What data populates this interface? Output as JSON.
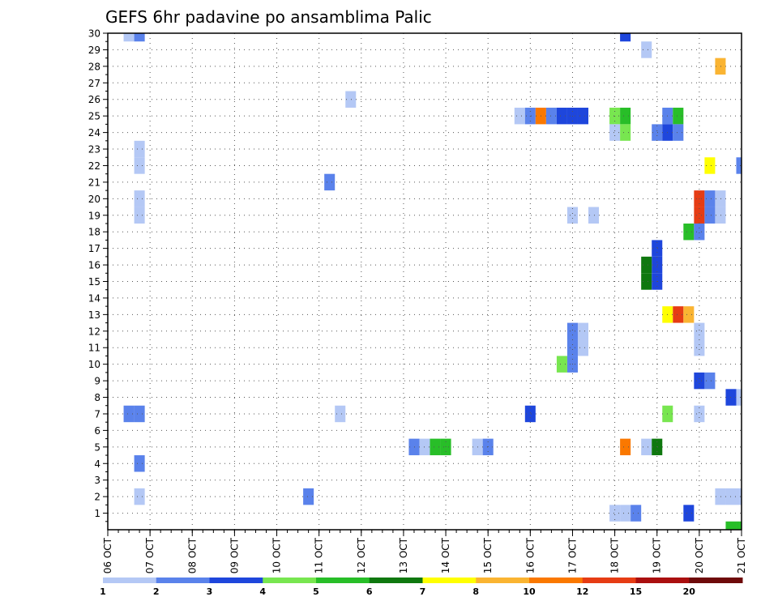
{
  "chart_data": {
    "type": "heatmap",
    "title": "GEFS 6hr padavine po ansamblima Palic",
    "x_ticks": [
      "06 OCT",
      "07 OCT",
      "08 OCT",
      "09 OCT",
      "10 OCT",
      "11 OCT",
      "12 OCT",
      "13 OCT",
      "14 OCT",
      "15 OCT",
      "16 OCT",
      "17 OCT",
      "18 OCT",
      "19 OCT",
      "20 OCT",
      "21 OCT"
    ],
    "y_ticks": [
      "1",
      "2",
      "3",
      "4",
      "5",
      "6",
      "7",
      "8",
      "9",
      "10",
      "11",
      "12",
      "13",
      "14",
      "15",
      "16",
      "17",
      "18",
      "19",
      "20",
      "21",
      "22",
      "23",
      "24",
      "25",
      "26",
      "27",
      "28",
      "29",
      "30"
    ],
    "x_range": [
      0,
      15
    ],
    "y_range": [
      0,
      30
    ],
    "grid": true,
    "colorbar": {
      "labels": [
        "1",
        "2",
        "3",
        "4",
        "5",
        "6",
        "7",
        "8",
        "10",
        "12",
        "15",
        "20"
      ],
      "colors": [
        "#b4c8f5",
        "#5a82eb",
        "#1e46dc",
        "#78e650",
        "#28be28",
        "#0f780f",
        "#ffff00",
        "#fab432",
        "#fa7800",
        "#e63c14",
        "#aa0f0f",
        "#6e0a0a"
      ]
    },
    "cells": [
      {
        "x": 0.5,
        "y": 30,
        "c": 0
      },
      {
        "x": 0.75,
        "y": 30,
        "c": 1
      },
      {
        "x": 12.25,
        "y": 30,
        "c": 2
      },
      {
        "x": 12.75,
        "y": 29,
        "c": 0
      },
      {
        "x": 14.5,
        "y": 28,
        "c": 7
      },
      {
        "x": 5.75,
        "y": 26,
        "c": 0
      },
      {
        "x": 9.75,
        "y": 25,
        "c": 0
      },
      {
        "x": 10.0,
        "y": 25,
        "c": 1
      },
      {
        "x": 10.25,
        "y": 25,
        "c": 8
      },
      {
        "x": 10.5,
        "y": 25,
        "c": 1
      },
      {
        "x": 10.75,
        "y": 25,
        "c": 2
      },
      {
        "x": 11.0,
        "y": 25,
        "c": 2
      },
      {
        "x": 11.25,
        "y": 25,
        "c": 2
      },
      {
        "x": 12.0,
        "y": 25,
        "c": 3
      },
      {
        "x": 12.25,
        "y": 25,
        "c": 4
      },
      {
        "x": 13.25,
        "y": 25,
        "c": 1
      },
      {
        "x": 13.5,
        "y": 25,
        "c": 4
      },
      {
        "x": 12.0,
        "y": 24,
        "c": 0
      },
      {
        "x": 12.25,
        "y": 24,
        "c": 3
      },
      {
        "x": 13.0,
        "y": 24,
        "c": 1
      },
      {
        "x": 13.25,
        "y": 24,
        "c": 2
      },
      {
        "x": 13.5,
        "y": 24,
        "c": 1
      },
      {
        "x": 0.75,
        "y": 23,
        "c": 0
      },
      {
        "x": 0.75,
        "y": 22,
        "c": 0
      },
      {
        "x": 14.25,
        "y": 22,
        "c": 6
      },
      {
        "x": 15.0,
        "y": 22,
        "c": 1
      },
      {
        "x": 5.25,
        "y": 21,
        "c": 1
      },
      {
        "x": 0.75,
        "y": 20,
        "c": 0
      },
      {
        "x": 14.0,
        "y": 20,
        "c": 9
      },
      {
        "x": 14.25,
        "y": 20,
        "c": 1
      },
      {
        "x": 14.5,
        "y": 20,
        "c": 0
      },
      {
        "x": 0.75,
        "y": 19,
        "c": 0
      },
      {
        "x": 11.0,
        "y": 19,
        "c": 0
      },
      {
        "x": 11.5,
        "y": 19,
        "c": 0
      },
      {
        "x": 14.0,
        "y": 19,
        "c": 9
      },
      {
        "x": 14.25,
        "y": 19,
        "c": 1
      },
      {
        "x": 14.5,
        "y": 19,
        "c": 0
      },
      {
        "x": 13.75,
        "y": 18,
        "c": 4
      },
      {
        "x": 14.0,
        "y": 18,
        "c": 1
      },
      {
        "x": 13.0,
        "y": 17,
        "c": 2
      },
      {
        "x": 13.0,
        "y": 16,
        "c": 2
      },
      {
        "x": 12.75,
        "y": 16,
        "c": 5
      },
      {
        "x": 12.75,
        "y": 15,
        "c": 5
      },
      {
        "x": 13.0,
        "y": 15,
        "c": 2
      },
      {
        "x": 13.25,
        "y": 13,
        "c": 6
      },
      {
        "x": 13.5,
        "y": 13,
        "c": 9
      },
      {
        "x": 13.75,
        "y": 13,
        "c": 7
      },
      {
        "x": 11.0,
        "y": 12,
        "c": 1
      },
      {
        "x": 11.25,
        "y": 12,
        "c": 0
      },
      {
        "x": 14.0,
        "y": 12,
        "c": 0
      },
      {
        "x": 11.0,
        "y": 11,
        "c": 1
      },
      {
        "x": 11.25,
        "y": 11,
        "c": 0
      },
      {
        "x": 14.0,
        "y": 11,
        "c": 0
      },
      {
        "x": 10.75,
        "y": 10,
        "c": 3
      },
      {
        "x": 11.0,
        "y": 10,
        "c": 1
      },
      {
        "x": 14.0,
        "y": 9,
        "c": 2
      },
      {
        "x": 14.25,
        "y": 9,
        "c": 1
      },
      {
        "x": 14.75,
        "y": 8,
        "c": 2
      },
      {
        "x": 15.0,
        "y": 8,
        "c": 0
      },
      {
        "x": 0.5,
        "y": 7,
        "c": 1
      },
      {
        "x": 0.75,
        "y": 7,
        "c": 1
      },
      {
        "x": 5.5,
        "y": 7,
        "c": 0
      },
      {
        "x": 10.0,
        "y": 7,
        "c": 2
      },
      {
        "x": 13.25,
        "y": 7,
        "c": 3
      },
      {
        "x": 14.0,
        "y": 7,
        "c": 0
      },
      {
        "x": 7.25,
        "y": 5,
        "c": 1
      },
      {
        "x": 7.5,
        "y": 5,
        "c": 0
      },
      {
        "x": 7.75,
        "y": 5,
        "c": 4
      },
      {
        "x": 8.0,
        "y": 5,
        "c": 4
      },
      {
        "x": 8.75,
        "y": 5,
        "c": 0
      },
      {
        "x": 9.0,
        "y": 5,
        "c": 1
      },
      {
        "x": 12.25,
        "y": 5,
        "c": 8
      },
      {
        "x": 12.75,
        "y": 5,
        "c": 0
      },
      {
        "x": 13.0,
        "y": 5,
        "c": 5
      },
      {
        "x": 0.75,
        "y": 4,
        "c": 1
      },
      {
        "x": 0.75,
        "y": 2,
        "c": 0
      },
      {
        "x": 4.75,
        "y": 2,
        "c": 1
      },
      {
        "x": 14.5,
        "y": 2,
        "c": 0
      },
      {
        "x": 14.75,
        "y": 2,
        "c": 0
      },
      {
        "x": 15.0,
        "y": 2,
        "c": 0
      },
      {
        "x": 12.0,
        "y": 1,
        "c": 0
      },
      {
        "x": 12.25,
        "y": 1,
        "c": 0
      },
      {
        "x": 12.5,
        "y": 1,
        "c": 1
      },
      {
        "x": 13.75,
        "y": 1,
        "c": 2
      },
      {
        "x": 14.75,
        "y": 0,
        "c": 4
      },
      {
        "x": 15.0,
        "y": 0,
        "c": 4
      }
    ]
  }
}
